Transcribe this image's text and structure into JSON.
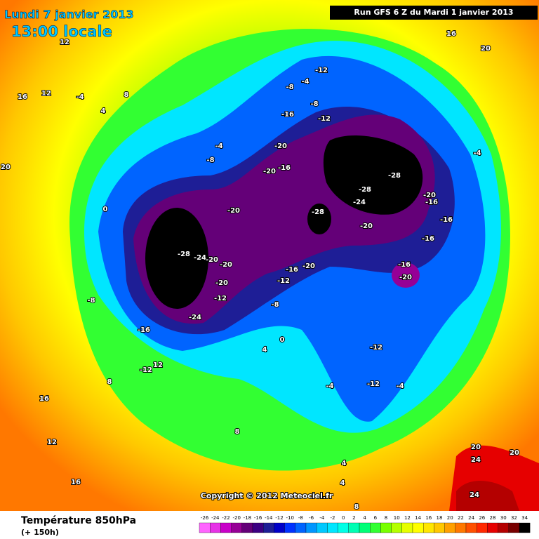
{
  "header": {
    "title": "Lundi 7 janvier 2013",
    "time": "13:00 locale",
    "run": "Run GFS 6 Z du Mardi 1 janvier 2013"
  },
  "copyright": "Copyright © 2012 Meteociel.fr",
  "legend": {
    "title": "Température 850hPa",
    "subtitle": "(+ 150h)",
    "values": [
      -26,
      -24,
      -22,
      -20,
      -18,
      -16,
      -14,
      -12,
      -10,
      -8,
      -6,
      -4,
      -2,
      0,
      2,
      4,
      6,
      8,
      10,
      12,
      14,
      16,
      18,
      20,
      22,
      24,
      26,
      28,
      30,
      32,
      34
    ],
    "colors": [
      "#ff64ff",
      "#e632e6",
      "#c800c8",
      "#960096",
      "#640078",
      "#3c0082",
      "#1e1e96",
      "#0000c8",
      "#0032ff",
      "#0064ff",
      "#0096ff",
      "#00c8ff",
      "#00e6ff",
      "#00ffe6",
      "#00ffb4",
      "#00ff78",
      "#32ff32",
      "#78ff00",
      "#b4ff00",
      "#e6ff00",
      "#ffff00",
      "#ffe600",
      "#ffc800",
      "#ffa000",
      "#ff7800",
      "#ff5000",
      "#ff2800",
      "#e60000",
      "#b40000",
      "#780000",
      "#000000"
    ]
  },
  "contour_labels": [
    -28,
    -28,
    -28,
    -28,
    -24,
    -24,
    -24,
    -20,
    -20,
    -20,
    -20,
    -20,
    -20,
    -20,
    -20,
    -20,
    -20,
    -16,
    -16,
    -16,
    -16,
    -16,
    -16,
    -16,
    -16,
    -12,
    -12,
    -12,
    -12,
    -12,
    -12,
    -12,
    -8,
    -8,
    -8,
    -8,
    -8,
    -4,
    -4,
    -4,
    -4,
    -4,
    0,
    0,
    4,
    4,
    4,
    8,
    8,
    8,
    12,
    12,
    12,
    12,
    16,
    16,
    16,
    16,
    20,
    20,
    20,
    20,
    24,
    24,
    -4,
    4,
    8
  ]
}
